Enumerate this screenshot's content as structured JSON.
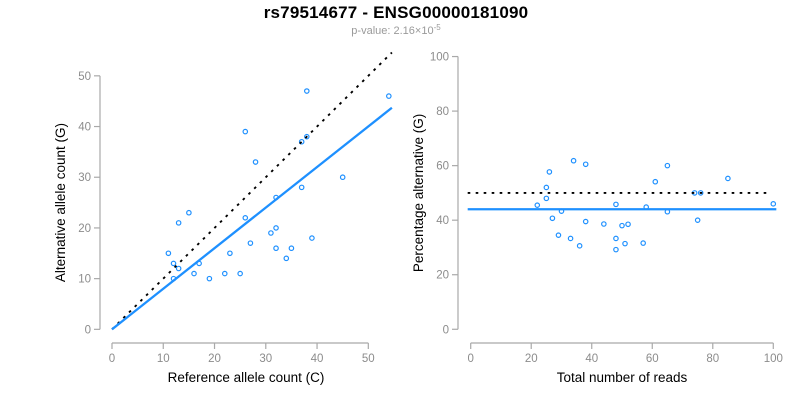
{
  "header": {
    "title": "rs79514677 - ENSG00000181090",
    "subtitle_prefix": "p-value: 2.16×10",
    "subtitle_exponent": "-5"
  },
  "colors": {
    "points_and_fit": "#1E90FF",
    "reference_line": "#000000",
    "axis_line": "#A9A9A9",
    "tick_label": "#8C8C8C",
    "axis_title": "#000000",
    "title": "#000000",
    "subtitle": "#9A9A9A",
    "background": "#FFFFFF"
  },
  "chart_data": [
    {
      "name": "allele-count-scatter",
      "type": "scatter",
      "title": "",
      "xlabel": "Reference allele count (C)",
      "ylabel": "Alternative allele count (G)",
      "xlim": [
        -2.34,
        54.62
      ],
      "ylim": [
        -2.3,
        54.7
      ],
      "xticks": [
        0,
        10,
        20,
        30,
        40,
        50
      ],
      "yticks": [
        0,
        10,
        20,
        30,
        40,
        50
      ],
      "grid": false,
      "legend": "none",
      "points": [
        [
          38,
          47
        ],
        [
          54,
          46
        ],
        [
          26,
          39
        ],
        [
          38,
          38
        ],
        [
          37,
          37
        ],
        [
          28,
          33
        ],
        [
          45,
          30
        ],
        [
          37,
          28
        ],
        [
          32,
          26
        ],
        [
          15,
          23
        ],
        [
          26,
          22
        ],
        [
          13,
          21
        ],
        [
          32,
          20
        ],
        [
          31,
          19
        ],
        [
          39,
          18
        ],
        [
          27,
          17
        ],
        [
          32,
          16
        ],
        [
          35,
          16
        ],
        [
          23,
          15
        ],
        [
          11,
          15
        ],
        [
          34,
          14
        ],
        [
          17,
          13
        ],
        [
          12,
          13
        ],
        [
          13,
          12
        ],
        [
          16,
          11
        ],
        [
          22,
          11
        ],
        [
          25,
          11
        ],
        [
          19,
          10
        ],
        [
          12,
          10
        ]
      ],
      "lines": [
        {
          "name": "identity-line",
          "style": "dotted",
          "color_key": "reference_line",
          "x1": 0,
          "y1": 0,
          "x2": 54.6,
          "y2": 54.6
        },
        {
          "name": "fit-line",
          "style": "solid",
          "color_key": "points_and_fit",
          "x1": 0,
          "y1": 0,
          "x2": 54.6,
          "y2": 43.7
        }
      ]
    },
    {
      "name": "percentage-scatter",
      "type": "scatter",
      "title": "",
      "xlabel": "Total number of reads",
      "ylabel": "Percentage alternative (G)",
      "xlim": [
        -4.2,
        104.2
      ],
      "ylim": [
        -4.3,
        101.3
      ],
      "xticks": [
        0,
        20,
        40,
        60,
        80,
        100
      ],
      "yticks": [
        0,
        20,
        40,
        60,
        80,
        100
      ],
      "grid": false,
      "legend": "none",
      "points": [
        [
          85,
          55.3
        ],
        [
          100,
          46
        ],
        [
          65,
          60
        ],
        [
          76,
          50
        ],
        [
          74,
          50
        ],
        [
          61,
          54.1
        ],
        [
          75,
          40
        ],
        [
          65,
          43.1
        ],
        [
          58,
          44.8
        ],
        [
          38,
          60.5
        ],
        [
          48,
          45.8
        ],
        [
          34,
          61.8
        ],
        [
          52,
          38.5
        ],
        [
          50,
          38
        ],
        [
          57,
          31.6
        ],
        [
          44,
          38.6
        ],
        [
          48,
          33.3
        ],
        [
          51,
          31.4
        ],
        [
          38,
          39.5
        ],
        [
          26,
          57.7
        ],
        [
          48,
          29.2
        ],
        [
          30,
          43.3
        ],
        [
          25,
          52
        ],
        [
          25,
          48
        ],
        [
          27,
          40.7
        ],
        [
          33,
          33.3
        ],
        [
          36,
          30.6
        ],
        [
          29,
          34.5
        ],
        [
          22,
          45.5
        ]
      ],
      "lines": [
        {
          "name": "fifty-percent-line",
          "style": "dotted",
          "color_key": "reference_line",
          "x1": -1,
          "y1": 50,
          "x2": 99,
          "y2": 50
        },
        {
          "name": "mean-percentage-line",
          "style": "solid",
          "color_key": "points_and_fit",
          "x1": -1,
          "y1": 44,
          "x2": 101,
          "y2": 44
        }
      ]
    }
  ]
}
